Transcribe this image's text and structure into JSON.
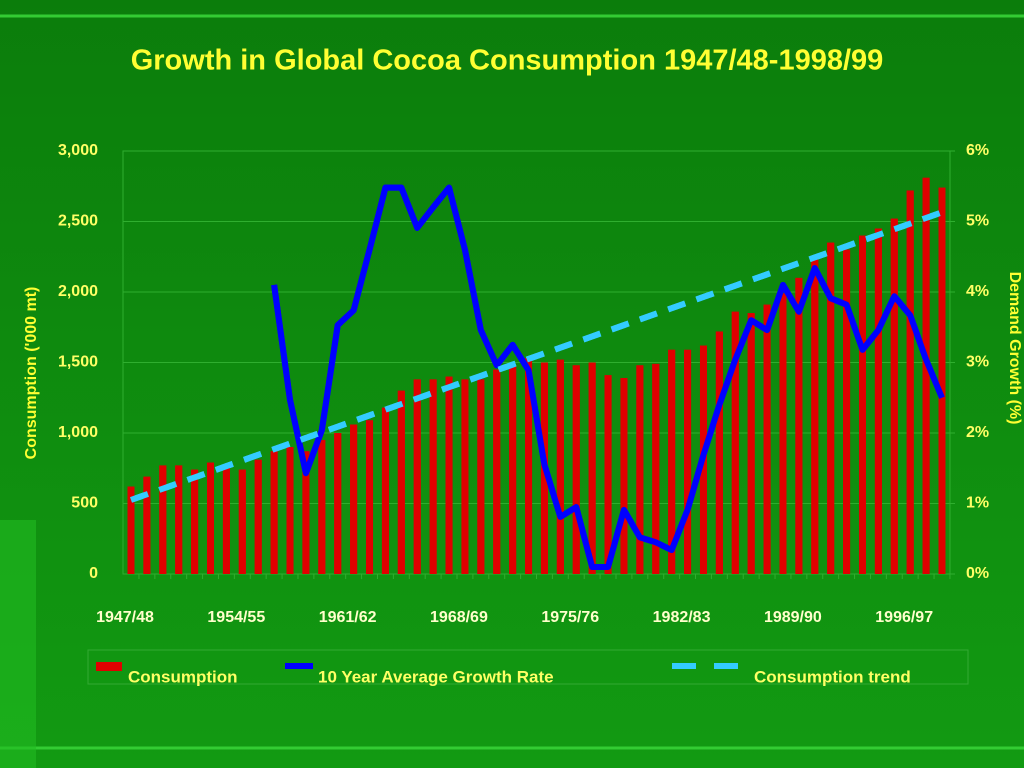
{
  "chart_data": {
    "type": "bar_line",
    "title": "Growth in Global Cocoa Consumption 1947/48-1998/99",
    "y_label": "Consumption ('000 mt)",
    "y2_label": "Demand Growth (%)",
    "categories": [
      "1947/48",
      null,
      null,
      null,
      null,
      null,
      null,
      "1954/55",
      null,
      null,
      null,
      null,
      null,
      null,
      "1961/62",
      null,
      null,
      null,
      null,
      null,
      null,
      "1968/69",
      null,
      null,
      null,
      null,
      null,
      null,
      "1975/76",
      null,
      null,
      null,
      null,
      null,
      null,
      "1982/83",
      null,
      null,
      null,
      null,
      null,
      null,
      "1989/90",
      null,
      null,
      null,
      null,
      null,
      null,
      "1996/97",
      null,
      null
    ],
    "ylim": [
      0,
      3000
    ],
    "yticks": [
      0,
      500,
      {
        "value": 1000,
        "label": "1,000"
      },
      {
        "value": 1500,
        "label": "1,500"
      },
      {
        "value": 2000,
        "label": "2,000"
      },
      {
        "value": 2500,
        "label": "2,500"
      },
      {
        "value": 3000,
        "label": "3,000"
      }
    ],
    "y2lim": [
      0,
      6
    ],
    "y2ticks": [
      {
        "value": 0,
        "label": "0%"
      },
      {
        "value": 1,
        "label": "1%"
      },
      {
        "value": 2,
        "label": "2%"
      },
      {
        "value": 3,
        "label": "3%"
      },
      {
        "value": 4,
        "label": "4%"
      },
      {
        "value": 5,
        "label": "5%"
      },
      {
        "value": 6,
        "label": "6%"
      }
    ],
    "grid": true,
    "series": [
      {
        "name": "Consumption",
        "kind": "bar",
        "color": "#e00000",
        "values": [
          620,
          690,
          770,
          770,
          740,
          790,
          760,
          740,
          810,
          870,
          900,
          870,
          950,
          1000,
          1060,
          1090,
          1180,
          1300,
          1380,
          1380,
          1400,
          1380,
          1380,
          1450,
          1480,
          1530,
          1500,
          1520,
          1480,
          1500,
          1410,
          1390,
          1480,
          1490,
          1590,
          1590,
          1620,
          1720,
          1860,
          1850,
          1910,
          1990,
          2100,
          2230,
          2350,
          2300,
          2400,
          2450,
          2520,
          2720,
          2810,
          2740
        ]
      },
      {
        "name": "10 Year Average Growth Rate",
        "kind": "line",
        "axis": "y2",
        "color": "#0000ff",
        "values": [
          null,
          null,
          null,
          null,
          null,
          null,
          null,
          null,
          null,
          4.1,
          2.47,
          1.43,
          2.04,
          3.53,
          3.74,
          4.6,
          5.48,
          5.48,
          4.91,
          5.2,
          5.48,
          4.6,
          3.46,
          2.96,
          3.25,
          2.89,
          1.55,
          0.81,
          0.95,
          0.1,
          0.1,
          0.91,
          0.52,
          0.45,
          0.34,
          0.91,
          1.69,
          2.4,
          3.04,
          3.6,
          3.46,
          4.1,
          3.72,
          4.34,
          3.91,
          3.82,
          3.18,
          3.46,
          3.94,
          3.67,
          3.04,
          2.5
        ]
      },
      {
        "name": "Consumption trend",
        "kind": "dashed",
        "color": "#33ccff",
        "values": [
          525,
          565,
          605,
          645,
          685,
          725,
          765,
          805,
          845,
          885,
          925,
          965,
          1005,
          1045,
          1085,
          1125,
          1165,
          1205,
          1245,
          1285,
          1325,
          1365,
          1405,
          1445,
          1485,
          1525,
          1565,
          1605,
          1645,
          1685,
          1725,
          1765,
          1805,
          1845,
          1885,
          1925,
          1965,
          2005,
          2045,
          2085,
          2125,
          2165,
          2205,
          2245,
          2285,
          2325,
          2365,
          2405,
          2445,
          2485,
          2525,
          2565
        ]
      }
    ]
  }
}
